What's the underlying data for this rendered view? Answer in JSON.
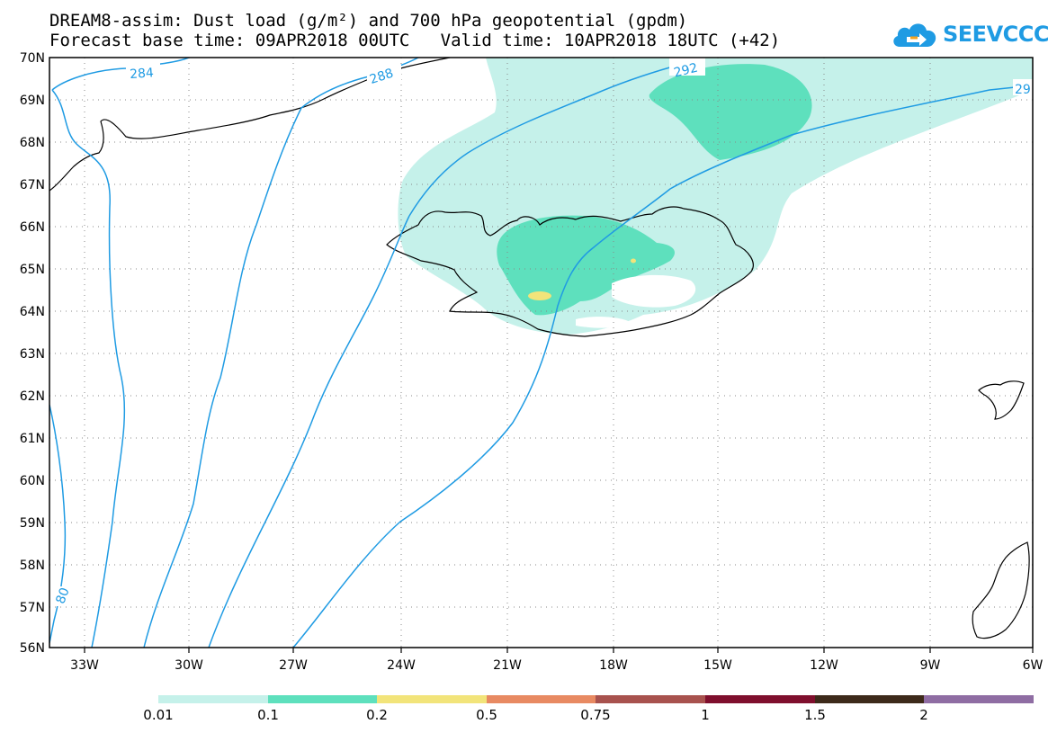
{
  "title": {
    "line1": "DREAM8-assim: Dust load (g/m²) and 700 hPa geopotential (gpdm)",
    "line2": "Forecast base time: 09APR2018 00UTC   Valid time: 10APR2018 18UTC (+42)"
  },
  "logo": {
    "text": "SEEVCCC",
    "icon": "cloud-arrow-icon"
  },
  "map": {
    "lon_range": [
      -34.5,
      -6
    ],
    "lat_range": [
      56,
      70
    ],
    "x_ticks": [
      "33W",
      "30W",
      "27W",
      "24W",
      "21W",
      "18W",
      "15W",
      "12W",
      "9W",
      "6W"
    ],
    "y_ticks": [
      "56N",
      "57N",
      "58N",
      "59N",
      "60N",
      "61N",
      "62N",
      "63N",
      "64N",
      "65N",
      "66N",
      "67N",
      "68N",
      "69N",
      "70N"
    ],
    "grid": "dotted",
    "contour_color": "#1f9be3",
    "contour_labels": [
      "284",
      "288",
      "292",
      "29",
      "80"
    ],
    "dust_colors": {
      "light": "#c5f1ea",
      "medium": "#5ee0bd",
      "yellow": "#f2e47a"
    }
  },
  "legend": {
    "colors": [
      "#c5f1ea",
      "#5ee0bd",
      "#f2e47a",
      "#e88a62",
      "#a8524e",
      "#7f0f2d",
      "#3d2a1a",
      "#8f6da3"
    ],
    "labels": [
      "0.01",
      "0.1",
      "0.2",
      "0.5",
      "0.75",
      "1",
      "1.5",
      "2"
    ]
  }
}
